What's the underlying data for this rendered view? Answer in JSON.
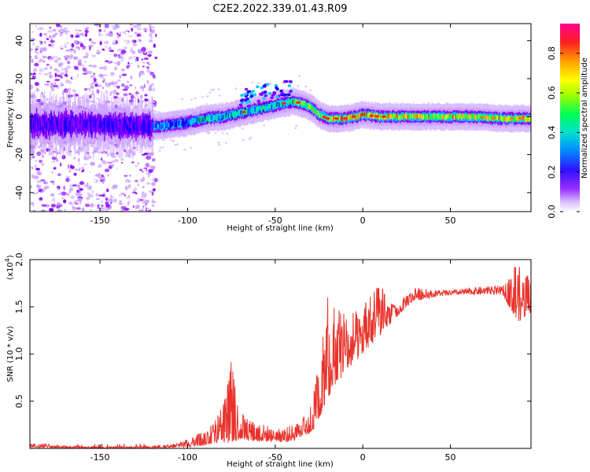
{
  "title": "C2E2.2022.339.01.43.R09",
  "chart_data": [
    {
      "type": "heatmap",
      "name": "spectrogram",
      "xlabel": "Height of straight line (km)",
      "ylabel": "Frequency (Hz)",
      "xlim": [
        -190,
        96
      ],
      "ylim": [
        -50,
        49
      ],
      "x_ticks": [
        -150,
        -100,
        -50,
        0,
        50
      ],
      "x_tick_labels": [
        "-150",
        "-100",
        "-50",
        "0",
        "50"
      ],
      "y_ticks": [
        40,
        20,
        0,
        -20,
        -40
      ],
      "y_tick_labels": [
        "40",
        "20",
        "0",
        "-20",
        "-40"
      ],
      "ridge": {
        "x": [
          -190,
          -160,
          -130,
          -115,
          -100,
          -90,
          -80,
          -70,
          -60,
          -50,
          -40,
          -35,
          -30,
          -25,
          -20,
          -10,
          -5,
          0,
          10,
          20,
          40,
          60,
          80,
          96
        ],
        "freq": [
          -4,
          -4,
          -5,
          -5,
          -3,
          -1,
          0,
          2,
          4,
          6,
          8,
          7,
          5,
          1,
          -1,
          -1,
          0,
          1,
          0,
          0,
          0,
          0,
          -1,
          -1
        ]
      },
      "colorbar": {
        "label": "Normalized spectral amplitude",
        "range": [
          0,
          0.95
        ],
        "ticks": [
          0.0,
          0.2,
          0.4,
          0.6,
          0.8
        ],
        "tick_labels": [
          "0.0",
          "0.2",
          "0.4",
          "0.6",
          "0.8"
        ],
        "colors": [
          "#ffffff",
          "#c9a0ff",
          "#8800ff",
          "#1c00ff",
          "#00c8ff",
          "#00ff55",
          "#c8ff00",
          "#ffa000",
          "#ff2020",
          "#ff0090"
        ]
      }
    },
    {
      "type": "line",
      "name": "snr",
      "xlabel": "Height of straight line (km)",
      "ylabel": "SNR (10 * v/v)",
      "y_multiplier": "(x10",
      "y_multiplier_exp": "4",
      "y_multiplier_close": ")",
      "xlim": [
        -190,
        96
      ],
      "ylim": [
        0,
        2.0
      ],
      "x_ticks": [
        -150,
        -100,
        -50,
        0,
        50
      ],
      "x_tick_labels": [
        "-150",
        "-100",
        "-50",
        "0",
        "50"
      ],
      "y_ticks": [
        0.5,
        1.0,
        1.5,
        2.0
      ],
      "y_tick_labels": [
        "0.5",
        "1.0",
        "1.5",
        "2.0"
      ],
      "color": "#e8332b",
      "envelope": {
        "x": [
          -190,
          -180,
          -170,
          -150,
          -130,
          -110,
          -100,
          -90,
          -85,
          -80,
          -78,
          -75,
          -72,
          -70,
          -65,
          -60,
          -55,
          -50,
          -45,
          -40,
          -35,
          -30,
          -28,
          -25,
          -22,
          -20,
          -18,
          -15,
          -12,
          -10,
          -8,
          -5,
          -2,
          0,
          5,
          10,
          15,
          20,
          25,
          30,
          40,
          50,
          60,
          70,
          80,
          85,
          88,
          90,
          96
        ],
        "lo": [
          0.01,
          0.01,
          0.0,
          0.0,
          0.0,
          0.0,
          0.01,
          0.03,
          0.05,
          0.07,
          0.06,
          0.05,
          0.08,
          0.1,
          0.08,
          0.07,
          0.07,
          0.08,
          0.06,
          0.08,
          0.12,
          0.15,
          0.2,
          0.3,
          0.45,
          0.5,
          0.6,
          0.7,
          0.75,
          0.8,
          0.85,
          0.9,
          0.95,
          1.0,
          1.1,
          1.2,
          1.3,
          1.4,
          1.5,
          1.56,
          1.6,
          1.62,
          1.63,
          1.63,
          1.62,
          1.45,
          1.35,
          1.35,
          1.45
        ],
        "hi": [
          0.05,
          0.04,
          0.03,
          0.02,
          0.02,
          0.04,
          0.1,
          0.2,
          0.28,
          0.45,
          0.6,
          0.95,
          0.55,
          0.4,
          0.3,
          0.28,
          0.25,
          0.2,
          0.22,
          0.25,
          0.3,
          0.45,
          0.6,
          0.95,
          1.25,
          1.65,
          1.7,
          1.45,
          1.5,
          1.4,
          1.4,
          1.5,
          1.4,
          1.5,
          1.65,
          1.75,
          1.55,
          1.5,
          1.65,
          1.7,
          1.68,
          1.68,
          1.7,
          1.72,
          1.72,
          1.85,
          2.0,
          1.9,
          1.8
        ]
      }
    }
  ]
}
